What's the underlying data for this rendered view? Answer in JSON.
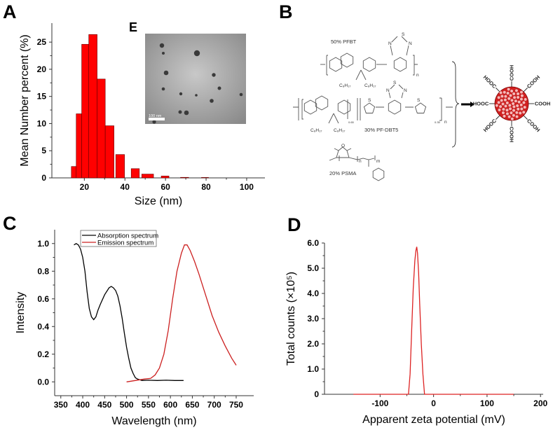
{
  "panel_labels": {
    "a": "A",
    "b": "B",
    "c": "C",
    "d": "D",
    "e": "E"
  },
  "inset_e": {
    "scale_bar_label": "100 nm"
  },
  "panel_b": {
    "pfbt_label": "50% PFBT",
    "pfdbt5_label": "30% PF-DBT5",
    "psma_label": "20% PSMA",
    "alkyl": "C₈H₁₇",
    "sulfur": "S",
    "nitrogen": "N",
    "oxygen": "O",
    "repeat_n": "n",
    "repeat_m": "m",
    "fraction_a": "0.65",
    "fraction_b": "0.35",
    "cooh": "COOH",
    "hooc": "HOOC",
    "particle_color": "#d42020"
  },
  "chart_data": [
    {
      "id": "A",
      "type": "bar",
      "xlabel": "Size (nm)",
      "ylabel": "Mean Number percent (%)",
      "xlim": [
        4,
        109
      ],
      "ylim": [
        0,
        28.5
      ],
      "xticks": [
        20,
        40,
        60,
        80,
        100
      ],
      "yticks": [
        0,
        5,
        10,
        15,
        20,
        25
      ],
      "grid": false,
      "color": "#ff0000",
      "bins": [
        {
          "start": 13.6,
          "end": 16.0,
          "value": 2.1
        },
        {
          "start": 16.0,
          "end": 18.7,
          "value": 11.8
        },
        {
          "start": 18.7,
          "end": 22.2,
          "value": 24.6
        },
        {
          "start": 22.2,
          "end": 26.3,
          "value": 26.4
        },
        {
          "start": 26.3,
          "end": 30.3,
          "value": 18.2
        },
        {
          "start": 30.3,
          "end": 34.6,
          "value": 9.6
        },
        {
          "start": 35.5,
          "end": 39.8,
          "value": 4.3
        },
        {
          "start": 43.1,
          "end": 47.1,
          "value": 1.7
        },
        {
          "start": 48.3,
          "end": 54.1,
          "value": 0.7
        },
        {
          "start": 57.9,
          "end": 61.7,
          "value": 0.35
        },
        {
          "start": 67.4,
          "end": 71.4,
          "value": 0.1
        },
        {
          "start": 77.7,
          "end": 81.2,
          "value": 0.08
        }
      ]
    },
    {
      "id": "C",
      "type": "line",
      "xlabel": "Wavelength (nm)",
      "ylabel": "Intensity",
      "xlim": [
        336,
        790
      ],
      "ylim": [
        -0.1,
        1.1
      ],
      "xticks": [
        350,
        400,
        450,
        500,
        550,
        600,
        650,
        700,
        750
      ],
      "yticks": [
        0.0,
        0.2,
        0.4,
        0.6,
        0.8,
        1.0
      ],
      "ytick_labels": [
        "0.0",
        "0.2",
        "0.4",
        "0.6",
        "0.8",
        "1.0"
      ],
      "grid": false,
      "legend_position": "top-left",
      "series": [
        {
          "name": "Absorption spectrum",
          "color": "#000000",
          "x": [
            380,
            385,
            390,
            395,
            400,
            405,
            410,
            415,
            420,
            425,
            430,
            435,
            440,
            450,
            460,
            465,
            470,
            475,
            480,
            485,
            490,
            495,
            500,
            505,
            510,
            515,
            520,
            525,
            530,
            535,
            550,
            570,
            590,
            610,
            630
          ],
          "y": [
            0.99,
            1.0,
            0.99,
            0.96,
            0.9,
            0.8,
            0.65,
            0.53,
            0.47,
            0.45,
            0.47,
            0.52,
            0.56,
            0.63,
            0.68,
            0.69,
            0.68,
            0.66,
            0.62,
            0.55,
            0.46,
            0.35,
            0.25,
            0.17,
            0.1,
            0.06,
            0.03,
            0.02,
            0.015,
            0.01,
            0.012,
            0.01,
            0.012,
            0.01,
            0.01
          ]
        },
        {
          "name": "Emission spectrum",
          "color": "#cc2020",
          "x": [
            500,
            520,
            540,
            555,
            565,
            575,
            585,
            595,
            605,
            615,
            625,
            632,
            638,
            645,
            655,
            665,
            680,
            695,
            710,
            725,
            740,
            750
          ],
          "y": [
            0.0,
            0.01,
            0.02,
            0.025,
            0.05,
            0.1,
            0.2,
            0.37,
            0.6,
            0.8,
            0.93,
            0.99,
            0.99,
            0.95,
            0.87,
            0.78,
            0.63,
            0.48,
            0.36,
            0.26,
            0.17,
            0.12
          ]
        }
      ]
    },
    {
      "id": "D",
      "type": "line",
      "xlabel": "Apparent zeta potential (mV)",
      "ylabel": "Total counts (×10⁵)",
      "xlim": [
        -204,
        205
      ],
      "ylim": [
        0,
        6.0
      ],
      "xticks": [
        -100,
        0,
        100,
        200
      ],
      "yticks": [
        0,
        1.0,
        2.0,
        3.0,
        4.0,
        5.0,
        6.0
      ],
      "ytick_labels": [
        "0",
        "1.0",
        "2.0",
        "3.0",
        "4.0",
        "5.0",
        "6.0"
      ],
      "grid": false,
      "series": [
        {
          "color": "#dd2222",
          "x": [
            -150,
            -47,
            -44,
            -41,
            -38,
            -35,
            -33,
            -31.5,
            -30,
            -28,
            -26,
            -23,
            -20,
            -17,
            150
          ],
          "y": [
            0,
            0,
            0.8,
            2.5,
            4.2,
            5.3,
            5.7,
            5.85,
            5.6,
            4.8,
            3.6,
            2.0,
            0.8,
            0,
            0
          ]
        }
      ]
    }
  ]
}
